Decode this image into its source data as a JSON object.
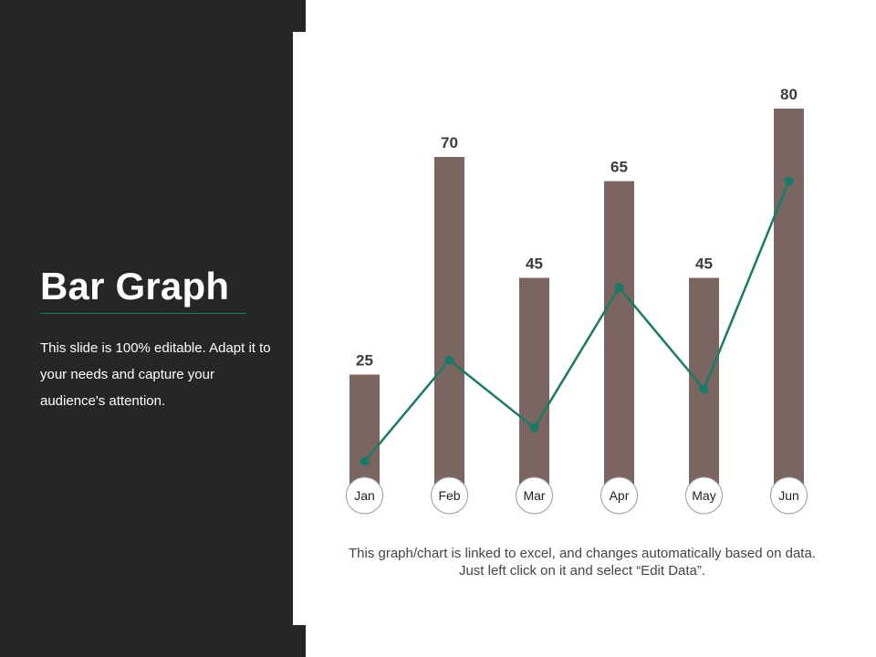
{
  "slide": {
    "title": "Bar Graph",
    "description": "This slide is 100% editable. Adapt it to your needs and capture your audience's attention.",
    "footnote": "This graph/chart is linked to excel, and changes automatically based on data. Just left click on it and select “Edit Data”."
  },
  "colors": {
    "panel": "#262626",
    "bar": "#7a6560",
    "line": "#1a7a68",
    "accent": "#1a7a68"
  },
  "chart_data": {
    "type": "bar",
    "categories": [
      "Jan",
      "Feb",
      "Mar",
      "Apr",
      "May",
      "Jun"
    ],
    "series": [
      {
        "values": [
          25,
          70,
          45,
          65,
          45,
          80
        ]
      },
      {
        "type": "line",
        "values": [
          7,
          28,
          14,
          43,
          22,
          65
        ]
      }
    ],
    "ylim": [
      0,
      80
    ],
    "grid": false
  }
}
